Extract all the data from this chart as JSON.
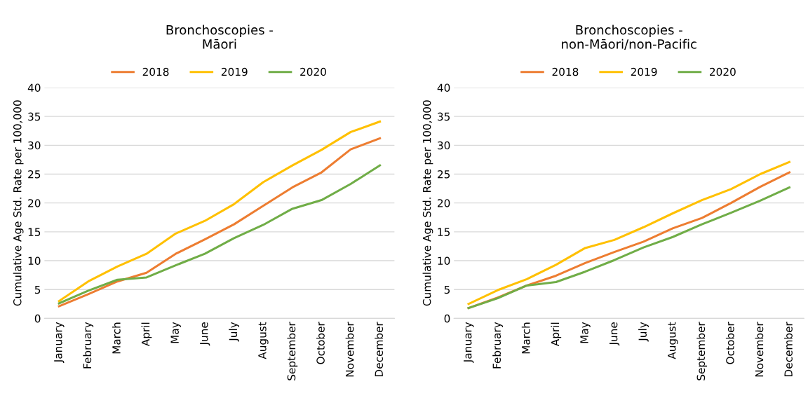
{
  "chart_data": [
    {
      "type": "line",
      "title": "Bronchoscopies -\nMāori",
      "ylabel": "Cumulative Age Std. Rate per 100,000",
      "categories": [
        "January",
        "February",
        "March",
        "April",
        "May",
        "June",
        "July",
        "August",
        "September",
        "October",
        "November",
        "December"
      ],
      "series": [
        {
          "name": "2018",
          "color": "#ed7d31",
          "values": [
            2.1,
            4.2,
            6.4,
            7.9,
            11.2,
            13.7,
            16.3,
            19.5,
            22.7,
            25.3,
            29.3,
            31.2
          ]
        },
        {
          "name": "2019",
          "color": "#ffc000",
          "values": [
            3.0,
            6.4,
            9.0,
            11.2,
            14.7,
            16.9,
            19.8,
            23.6,
            26.5,
            29.2,
            32.3,
            34.1
          ]
        },
        {
          "name": "2020",
          "color": "#70ad47",
          "values": [
            2.6,
            4.8,
            6.7,
            7.1,
            9.2,
            11.2,
            13.9,
            16.2,
            19.0,
            20.5,
            23.3,
            26.5
          ]
        }
      ],
      "ylim": [
        0,
        40
      ],
      "yticks": [
        0,
        5,
        10,
        15,
        20,
        25,
        30,
        35,
        40
      ],
      "grid": "y",
      "legend": "top",
      "marker": "none",
      "line_style": "solid"
    },
    {
      "type": "line",
      "title": "Bronchoscopies -\nnon-Māori/non-Pacific",
      "ylabel": "Cumulative Age Std. Rate per 100,000",
      "categories": [
        "January",
        "February",
        "March",
        "April",
        "May",
        "June",
        "July",
        "August",
        "September",
        "October",
        "November",
        "December"
      ],
      "series": [
        {
          "name": "2018",
          "color": "#ed7d31",
          "values": [
            1.8,
            3.6,
            5.7,
            7.4,
            9.6,
            11.5,
            13.3,
            15.6,
            17.4,
            20.0,
            22.8,
            25.3
          ]
        },
        {
          "name": "2019",
          "color": "#ffc000",
          "values": [
            2.5,
            4.9,
            6.8,
            9.3,
            12.2,
            13.6,
            15.8,
            18.2,
            20.5,
            22.4,
            25.0,
            27.1
          ]
        },
        {
          "name": "2020",
          "color": "#70ad47",
          "values": [
            1.8,
            3.5,
            5.7,
            6.3,
            8.1,
            10.1,
            12.3,
            14.1,
            16.3,
            18.3,
            20.4,
            22.7
          ]
        }
      ],
      "ylim": [
        0,
        40
      ],
      "yticks": [
        0,
        5,
        10,
        15,
        20,
        25,
        30,
        35,
        40
      ],
      "grid": "y",
      "legend": "top",
      "marker": "none",
      "line_style": "solid"
    }
  ]
}
